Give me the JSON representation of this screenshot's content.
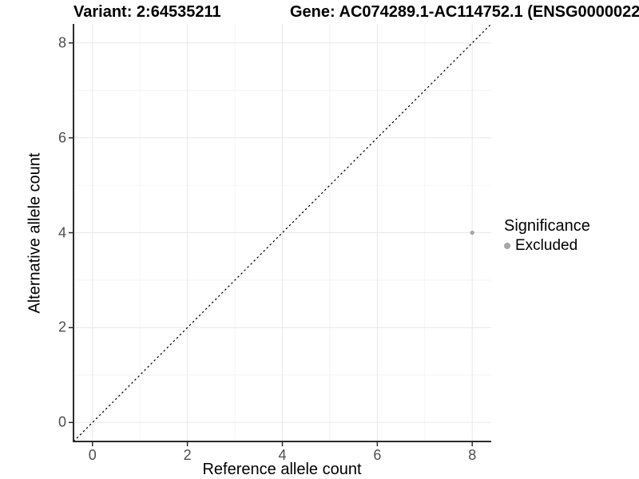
{
  "titles": {
    "variant": "Variant: 2:64535211",
    "gene": "Gene: AC074289.1-AC114752.1 (ENSG0000022"
  },
  "legend": {
    "title": "Significance",
    "items": [
      {
        "label": "Excluded",
        "color": "#a6a6a6"
      }
    ]
  },
  "chart_data": {
    "type": "scatter",
    "title": "Variant: 2:64535211 — Gene: AC074289.1-AC114752.1 (ENSG0000022",
    "xlabel": "Reference allele count",
    "ylabel": "Alternative allele count",
    "xlim": [
      -0.4,
      8.4
    ],
    "ylim": [
      -0.4,
      8.4
    ],
    "xticks": [
      0,
      2,
      4,
      6,
      8
    ],
    "yticks": [
      0,
      2,
      4,
      6,
      8
    ],
    "xminor": [
      1,
      3,
      5,
      7
    ],
    "yminor": [
      1,
      3,
      5,
      7
    ],
    "grid": true,
    "legend_position": "right",
    "series": [
      {
        "name": "Excluded",
        "color": "#a6a6a6",
        "points": [
          {
            "x": 8,
            "y": 4
          }
        ]
      }
    ],
    "reference_line": {
      "type": "identity",
      "from": -0.4,
      "to": 8.4,
      "style": "dashed",
      "color": "#000000"
    },
    "colors": {
      "grid_major": "#e8e8e8",
      "grid_minor": "#f4f4f4",
      "axis_line": "#2b2b2b",
      "tick_text": "#4d4d4d"
    }
  }
}
